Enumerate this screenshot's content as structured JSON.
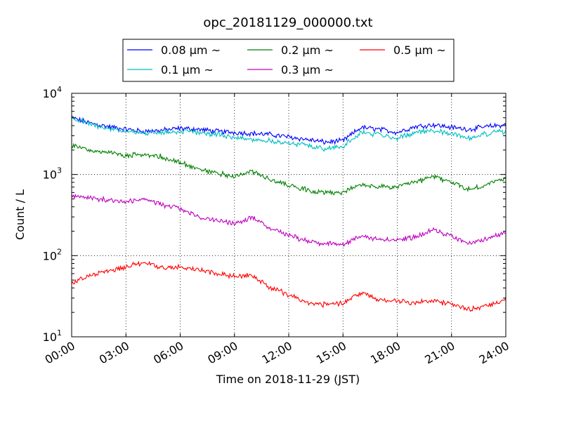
{
  "chart_data": {
    "type": "line",
    "title": "opc_20181129_000000.txt",
    "xlabel": "Time on 2018-11-29 (JST)",
    "ylabel": "Count / L",
    "yscale": "log",
    "ylim": [
      10,
      10000
    ],
    "xlim": [
      "00:00",
      "24:00"
    ],
    "x_ticks": [
      "00:00",
      "03:00",
      "06:00",
      "09:00",
      "12:00",
      "15:00",
      "18:00",
      "21:00",
      "24:00"
    ],
    "y_ticks": [
      {
        "value": 10,
        "base": "10",
        "exp": "1"
      },
      {
        "value": 100,
        "base": "10",
        "exp": "2"
      },
      {
        "value": 1000,
        "base": "10",
        "exp": "3"
      },
      {
        "value": 10000,
        "base": "10",
        "exp": "4"
      }
    ],
    "grid": true,
    "legend_position": "top",
    "x_hours": [
      0,
      1,
      2,
      3,
      4,
      5,
      6,
      7,
      8,
      9,
      10,
      11,
      12,
      13,
      14,
      15,
      16,
      17,
      18,
      19,
      20,
      21,
      22,
      23,
      24
    ],
    "series": [
      {
        "name": "0.08 μm ~",
        "color": "#0000ff",
        "values": [
          5000,
          4300,
          3900,
          3600,
          3400,
          3500,
          3700,
          3600,
          3400,
          3300,
          3200,
          3100,
          2900,
          2700,
          2500,
          2600,
          3800,
          3600,
          3300,
          3900,
          4100,
          3800,
          3600,
          3900,
          4100
        ]
      },
      {
        "name": "0.1 μm ~",
        "color": "#00bfbf",
        "values": [
          5000,
          4200,
          3700,
          3400,
          3200,
          3300,
          3400,
          3300,
          3100,
          2900,
          2700,
          2600,
          2400,
          2300,
          2100,
          2200,
          3300,
          3100,
          2800,
          3300,
          3500,
          3200,
          2800,
          3200,
          3400
        ]
      },
      {
        "name": "0.2 μm ~",
        "color": "#008000",
        "values": [
          2300,
          2000,
          1850,
          1700,
          1750,
          1650,
          1400,
          1150,
          1050,
          950,
          1100,
          850,
          750,
          650,
          600,
          600,
          750,
          700,
          700,
          800,
          950,
          800,
          650,
          750,
          920
        ]
      },
      {
        "name": "0.3 μm ~",
        "color": "#bf00bf",
        "values": [
          550,
          520,
          480,
          460,
          500,
          420,
          380,
          300,
          270,
          250,
          290,
          220,
          180,
          150,
          140,
          140,
          170,
          160,
          155,
          170,
          210,
          170,
          140,
          160,
          200
        ]
      },
      {
        "name": "0.5 μm ~",
        "color": "#ff0000",
        "values": [
          45,
          58,
          63,
          72,
          82,
          72,
          72,
          68,
          60,
          56,
          56,
          40,
          33,
          27,
          25,
          26,
          35,
          28,
          28,
          26,
          28,
          25,
          22,
          24,
          30
        ]
      }
    ]
  }
}
